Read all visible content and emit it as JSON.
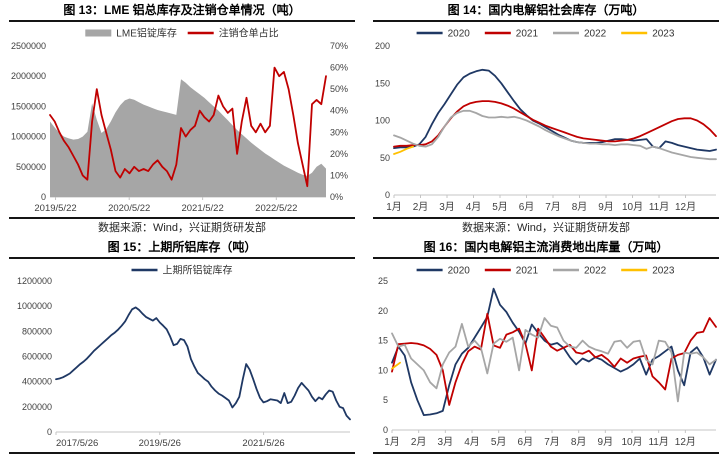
{
  "colors": {
    "navy": "#1f3864",
    "red": "#c00000",
    "gray": "#a6a6a6",
    "gold": "#ffc000",
    "axis_text": "#404040",
    "axis_line": "#c4c4c4"
  },
  "panels": [
    {
      "title": "图 13：LME 铝总库存及注销仓单情况（吨）",
      "source": "数据来源：Wind，兴证期货研发部"
    },
    {
      "title": "图 14：国内电解铝社会库存（万吨）",
      "source": "数据来源：Wind，兴证期货研发部"
    },
    {
      "title": "图 15：上期所铝库存（吨）"
    },
    {
      "title": "图 16：国内电解铝主流消费地出库量（万吨）"
    }
  ],
  "chart_data": [
    {
      "type": "area",
      "title": "图 13：LME 铝总库存及注销仓单情况（吨）",
      "legend": [
        {
          "label": "LME铝锭库存",
          "color": "#a6a6a6",
          "swatch": "bar"
        },
        {
          "label": "注销仓单占比",
          "color": "#c00000",
          "swatch": "line"
        }
      ],
      "y": {
        "lim": [
          0,
          2500000
        ],
        "ticks": [
          0,
          500000,
          1000000,
          1500000,
          2000000,
          2500000
        ]
      },
      "y2": {
        "lim": [
          0,
          70
        ],
        "ticks": [
          0,
          10,
          20,
          30,
          40,
          50,
          60,
          70
        ],
        "suffix": "%"
      },
      "x_ticks": [
        {
          "label": "2019/5/22",
          "pos": 0.02
        },
        {
          "label": "2020/5/22",
          "pos": 0.287
        },
        {
          "label": "2021/5/22",
          "pos": 0.553
        },
        {
          "label": "2022/5/22",
          "pos": 0.82
        }
      ],
      "series": [
        {
          "name": "LME铝锭库存",
          "type": "area",
          "axis": "left",
          "color": "#a6a6a6",
          "values": [
            1250000,
            1150000,
            1060000,
            1000000,
            970000,
            950000,
            960000,
            1000000,
            1080000,
            1550000,
            1280000,
            1060000,
            1120000,
            1250000,
            1400000,
            1520000,
            1600000,
            1630000,
            1610000,
            1570000,
            1530000,
            1500000,
            1470000,
            1440000,
            1420000,
            1400000,
            1380000,
            1360000,
            1950000,
            1890000,
            1820000,
            1760000,
            1700000,
            1640000,
            1570000,
            1500000,
            1430000,
            1350000,
            1270000,
            1190000,
            1110000,
            1040000,
            970000,
            900000,
            840000,
            780000,
            720000,
            670000,
            620000,
            570000,
            520000,
            480000,
            440000,
            400000,
            370000,
            350000,
            400000,
            500000,
            550000,
            470000
          ]
        },
        {
          "name": "注销仓单占比",
          "type": "line",
          "axis": "right",
          "color": "#c00000",
          "values": [
            38,
            35,
            30,
            26,
            23,
            19,
            15,
            10,
            8,
            35,
            50,
            38,
            30,
            22,
            12,
            9,
            13,
            11,
            14,
            12,
            13,
            12,
            15,
            17,
            14,
            12,
            8,
            15,
            32,
            28,
            31,
            33,
            40,
            37,
            35,
            38,
            47,
            42,
            39,
            41,
            20,
            35,
            46,
            33,
            30,
            34,
            30,
            33,
            60,
            56,
            58,
            50,
            38,
            25,
            15,
            5,
            43,
            45,
            43,
            56
          ]
        }
      ]
    },
    {
      "type": "line",
      "title": "图 14：国内电解铝社会库存（万吨）",
      "legend": [
        {
          "label": "2020",
          "color": "#1f3864",
          "swatch": "line"
        },
        {
          "label": "2021",
          "color": "#c00000",
          "swatch": "line"
        },
        {
          "label": "2022",
          "color": "#a6a6a6",
          "swatch": "line"
        },
        {
          "label": "2023",
          "color": "#ffc000",
          "swatch": "line"
        }
      ],
      "y": {
        "lim": [
          0,
          200
        ],
        "ticks": [
          0,
          50,
          100,
          150,
          200
        ]
      },
      "x_months": [
        "1月",
        "2月",
        "3月",
        "4月",
        "5月",
        "6月",
        "7月",
        "8月",
        "9月",
        "10月",
        "11月",
        "12月"
      ],
      "series": [
        {
          "name": "2020",
          "type": "line",
          "axis": "left",
          "color": "#1f3864",
          "values": [
            63,
            64,
            64,
            65,
            68,
            78,
            95,
            110,
            122,
            135,
            148,
            158,
            163,
            166,
            168,
            167,
            160,
            150,
            138,
            126,
            115,
            107,
            100,
            96,
            91,
            86,
            81,
            77,
            73,
            71,
            70,
            70,
            70,
            71,
            73,
            75,
            75,
            74,
            73,
            74,
            75,
            65,
            63,
            72,
            70,
            67,
            65,
            63,
            61,
            60,
            59,
            61
          ]
        },
        {
          "name": "2021",
          "type": "line",
          "axis": "left",
          "color": "#c00000",
          "values": [
            65,
            66,
            66,
            67,
            67,
            68,
            72,
            80,
            92,
            103,
            112,
            119,
            123,
            125,
            126,
            126,
            125,
            123,
            120,
            116,
            111,
            106,
            101,
            97,
            93,
            90,
            87,
            84,
            81,
            78,
            76,
            75,
            74,
            73,
            72,
            72,
            73,
            74,
            76,
            79,
            83,
            87,
            91,
            95,
            99,
            102,
            103,
            103,
            100,
            95,
            88,
            79
          ]
        },
        {
          "name": "2022",
          "type": "line",
          "axis": "left",
          "color": "#a6a6a6",
          "values": [
            80,
            77,
            73,
            69,
            66,
            65,
            68,
            78,
            92,
            104,
            110,
            113,
            113,
            110,
            106,
            104,
            104,
            105,
            104,
            105,
            103,
            100,
            96,
            92,
            87,
            83,
            79,
            76,
            73,
            71,
            70,
            69,
            69,
            68,
            68,
            67,
            68,
            68,
            67,
            66,
            62,
            65,
            63,
            60,
            57,
            55,
            53,
            51,
            50,
            49,
            48,
            48
          ]
        },
        {
          "name": "2023",
          "type": "line",
          "axis": "left",
          "color": "#ffc000",
          "span": [
            0,
            0.059
          ],
          "values": [
            55,
            58,
            62,
            65
          ]
        }
      ]
    },
    {
      "type": "line",
      "title": "图 15：上期所铝库存（吨）",
      "legend": [
        {
          "label": "上期所铝锭库存",
          "color": "#1f3864",
          "swatch": "line"
        }
      ],
      "y": {
        "lim": [
          0,
          1200000
        ],
        "ticks": [
          0,
          200000,
          400000,
          600000,
          800000,
          1000000,
          1200000
        ]
      },
      "x_ticks": [
        {
          "label": "2017/5/26",
          "pos": 0.0
        },
        {
          "label": "2019/5/26",
          "pos": 0.353
        },
        {
          "label": "2021/5/26",
          "pos": 0.706
        }
      ],
      "series": [
        {
          "name": "上期所铝锭库存",
          "type": "line",
          "axis": "left",
          "color": "#1f3864",
          "values": [
            420000,
            425000,
            435000,
            450000,
            465000,
            490000,
            515000,
            540000,
            560000,
            585000,
            615000,
            645000,
            670000,
            695000,
            720000,
            745000,
            770000,
            790000,
            815000,
            845000,
            880000,
            930000,
            975000,
            990000,
            970000,
            940000,
            915000,
            900000,
            885000,
            905000,
            870000,
            845000,
            815000,
            760000,
            690000,
            700000,
            740000,
            730000,
            680000,
            580000,
            520000,
            470000,
            445000,
            420000,
            400000,
            360000,
            330000,
            305000,
            290000,
            270000,
            250000,
            195000,
            230000,
            280000,
            420000,
            540000,
            495000,
            420000,
            340000,
            270000,
            235000,
            245000,
            260000,
            255000,
            250000,
            230000,
            310000,
            230000,
            240000,
            290000,
            350000,
            390000,
            360000,
            330000,
            280000,
            245000,
            275000,
            260000,
            300000,
            330000,
            320000,
            250000,
            200000,
            190000,
            130000,
            100000
          ]
        }
      ]
    },
    {
      "type": "line",
      "title": "图 16：国内电解铝主流消费地出库量（万吨）",
      "legend": [
        {
          "label": "2020",
          "color": "#1f3864",
          "swatch": "line"
        },
        {
          "label": "2021",
          "color": "#c00000",
          "swatch": "line"
        },
        {
          "label": "2022",
          "color": "#a6a6a6",
          "swatch": "line"
        },
        {
          "label": "2023",
          "color": "#ffc000",
          "swatch": "line"
        }
      ],
      "y": {
        "lim": [
          0,
          25
        ],
        "ticks": [
          0,
          5,
          10,
          15,
          20,
          25
        ]
      },
      "x_months": [
        "1月",
        "2月",
        "3月",
        "4月",
        "5月",
        "6月",
        "7月",
        "8月",
        "9月",
        "10月",
        "11月",
        "12月"
      ],
      "series": [
        {
          "name": "2020",
          "type": "line",
          "axis": "left",
          "color": "#1f3864",
          "values": [
            11.3,
            14.0,
            12.5,
            8.0,
            5.0,
            2.5,
            2.6,
            2.8,
            3.2,
            7.5,
            11.0,
            12.8,
            13.8,
            15.5,
            17.2,
            19.0,
            23.7,
            21.0,
            19.8,
            18.0,
            16.5,
            14.5,
            17.7,
            16.3,
            15.0,
            14.3,
            14.6,
            13.8,
            12.2,
            11.0,
            12.0,
            11.5,
            12.2,
            11.8,
            11.0,
            10.4,
            9.8,
            10.3,
            11.0,
            12.0,
            9.3,
            11.8,
            12.4,
            13.2,
            14.0,
            10.0,
            7.5,
            13.0,
            13.9,
            12.2,
            9.3,
            11.8
          ]
        },
        {
          "name": "2021",
          "type": "line",
          "axis": "left",
          "color": "#c00000",
          "values": [
            9.8,
            14.4,
            14.5,
            14.6,
            14.5,
            14.2,
            13.6,
            12.6,
            10.0,
            4.2,
            8.0,
            11.0,
            13.2,
            14.0,
            13.5,
            19.5,
            14.2,
            13.8,
            16.0,
            16.4,
            17.0,
            14.5,
            10.0,
            17.0,
            15.5,
            14.0,
            13.3,
            13.8,
            14.3,
            13.0,
            12.8,
            13.3,
            12.2,
            12.6,
            11.8,
            10.6,
            12.0,
            11.3,
            12.0,
            12.3,
            12.5,
            9.0,
            8.0,
            6.8,
            12.0,
            12.6,
            12.9,
            15.0,
            16.3,
            16.5,
            18.8,
            17.3
          ]
        },
        {
          "name": "2022",
          "type": "line",
          "axis": "left",
          "color": "#a6a6a6",
          "values": [
            16.2,
            14.0,
            14.3,
            12.0,
            11.0,
            10.0,
            8.0,
            7.0,
            11.0,
            13.0,
            14.0,
            17.8,
            14.0,
            15.0,
            13.8,
            9.5,
            14.5,
            15.3,
            14.8,
            15.5,
            10.0,
            16.8,
            16.0,
            15.5,
            18.8,
            17.5,
            17.2,
            15.0,
            14.0,
            13.8,
            15.0,
            14.0,
            13.5,
            13.2,
            12.8,
            14.8,
            15.0,
            13.8,
            14.8,
            15.0,
            11.8,
            11.0,
            15.0,
            14.8,
            13.0,
            4.8,
            13.0,
            12.8,
            13.0,
            12.2,
            11.0,
            11.8
          ]
        },
        {
          "name": "2023",
          "type": "line",
          "axis": "left",
          "color": "#ffc000",
          "span": [
            0,
            0.025
          ],
          "values": [
            10.3,
            11.3
          ]
        }
      ]
    }
  ]
}
